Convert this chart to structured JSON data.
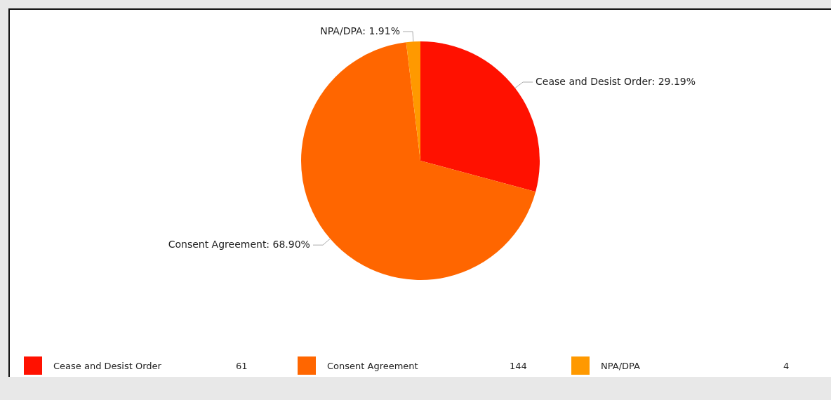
{
  "chart_data": {
    "type": "pie",
    "categories": [
      "Cease and Desist Order",
      "Consent Agreement",
      "NPA/DPA"
    ],
    "values": [
      29.19,
      68.9,
      1.91
    ],
    "colors": [
      "#ff1100",
      "#ff6600",
      "#ff9900"
    ],
    "value_labels": [
      "Cease and Desist Order: 29.19%",
      "Consent Agreement: 68.90%",
      "NPA/DPA: 1.91%"
    ],
    "annotations": [
      "61",
      "144",
      "4"
    ],
    "legend": "bottom"
  }
}
